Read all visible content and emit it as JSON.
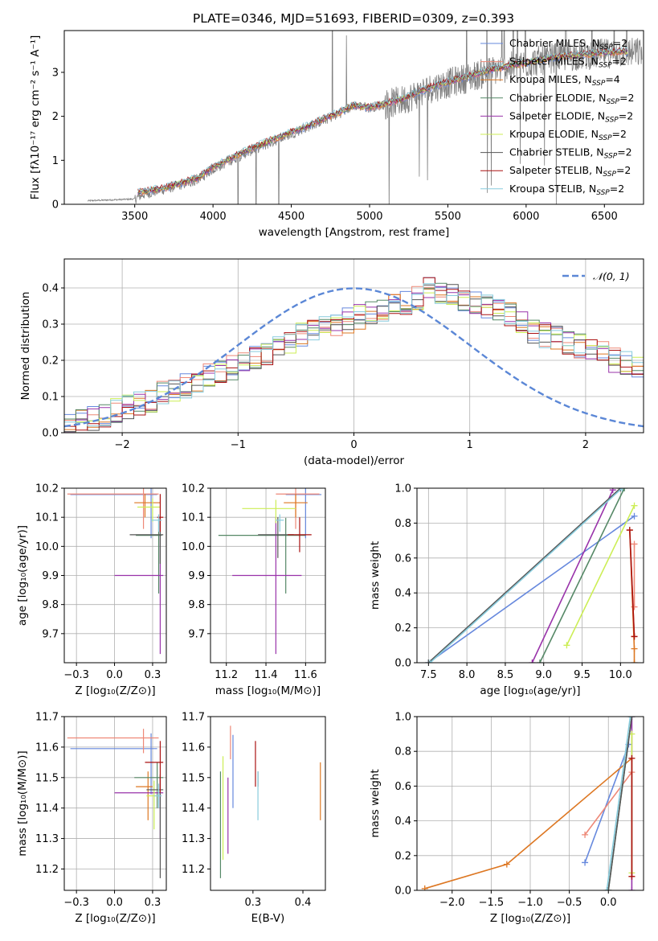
{
  "figure": {
    "title": "PLATE=0346, MJD=51693, FIBERID=0309, z=0.393"
  },
  "models": [
    {
      "name": "Chabrier MILES",
      "nssp": "2",
      "color": "#6688dd"
    },
    {
      "name": "Salpeter MILES",
      "nssp": "2",
      "color": "#ee8877"
    },
    {
      "name": "Kroupa MILES",
      "nssp": "4",
      "color": "#dd7722"
    },
    {
      "name": "Chabrier ELODIE",
      "nssp": "2",
      "color": "#558866"
    },
    {
      "name": "Salpeter ELODIE",
      "nssp": "2",
      "color": "#9933aa"
    },
    {
      "name": "Kroupa ELODIE",
      "nssp": "2",
      "color": "#ccee55"
    },
    {
      "name": "Chabrier STELIB",
      "nssp": "2",
      "color": "#555555"
    },
    {
      "name": "Salpeter STELIB",
      "nssp": "2",
      "color": "#aa1111"
    },
    {
      "name": "Kroupa STELIB",
      "nssp": "2",
      "color": "#88ccdd"
    }
  ],
  "legend_nssp_prefix": "N",
  "legend_nssp_sub": "SSP",
  "chart_data": [
    {
      "id": "spectrum",
      "type": "line",
      "xlabel": "wavelength [Angstrom, rest frame]",
      "ylabel": "Flux [fλ10⁻¹⁷ erg cm⁻² s⁻¹ A⁻¹]",
      "xlim": [
        3050,
        6750
      ],
      "ylim": [
        0,
        3.95
      ],
      "xticks": [
        3500,
        4000,
        4500,
        5000,
        5500,
        6000,
        6500
      ],
      "yticks": [
        0,
        1,
        2,
        3
      ],
      "grid": false,
      "legend_position": "top-right",
      "data_color": "#808080",
      "data_trend": {
        "x": [
          3200,
          3500,
          3550,
          3700,
          3900,
          4000,
          4200,
          4400,
          4600,
          4800,
          4900,
          5000,
          5200,
          5400,
          5600,
          5800,
          6000,
          6200,
          6400,
          6600
        ],
        "y": [
          0.08,
          0.12,
          0.22,
          0.35,
          0.55,
          0.8,
          1.15,
          1.45,
          1.75,
          2.05,
          2.25,
          2.2,
          2.35,
          2.65,
          2.85,
          3.05,
          3.2,
          3.35,
          3.4,
          3.45
        ]
      },
      "model_trend": {
        "x": [
          3500,
          3700,
          3900,
          4000,
          4200,
          4400,
          4600,
          4800,
          4900,
          5000,
          5200,
          5400,
          5600,
          5800,
          6000,
          6200,
          6400,
          6600
        ],
        "y": [
          0.25,
          0.38,
          0.6,
          0.85,
          1.2,
          1.5,
          1.78,
          2.08,
          2.25,
          2.2,
          2.38,
          2.68,
          2.88,
          3.08,
          3.22,
          3.36,
          3.42,
          3.47
        ]
      }
    },
    {
      "id": "residuals",
      "type": "bar",
      "xlabel": "(data-model)/error",
      "ylabel": "Normed distribution",
      "xlim": [
        -2.5,
        2.5
      ],
      "ylim": [
        0,
        0.48
      ],
      "xticks": [
        -2,
        -1,
        0,
        1,
        2
      ],
      "yticks": [
        0.0,
        0.1,
        0.2,
        0.3,
        0.4
      ],
      "grid": true,
      "bin_edges_start": -2.5,
      "bin_width": 0.1,
      "base_hist": [
        0.02,
        0.03,
        0.04,
        0.05,
        0.06,
        0.07,
        0.08,
        0.09,
        0.11,
        0.12,
        0.13,
        0.14,
        0.16,
        0.17,
        0.18,
        0.2,
        0.21,
        0.22,
        0.24,
        0.25,
        0.27,
        0.28,
        0.29,
        0.3,
        0.31,
        0.32,
        0.33,
        0.34,
        0.35,
        0.36,
        0.37,
        0.4,
        0.39,
        0.38,
        0.37,
        0.36,
        0.35,
        0.34,
        0.33,
        0.3,
        0.28,
        0.27,
        0.26,
        0.25,
        0.24,
        0.23,
        0.22,
        0.2,
        0.19,
        0.18,
        0.17,
        0.16,
        0.15,
        0.14,
        0.14,
        0.13,
        0.12,
        0.11,
        0.11,
        0.1,
        0.09,
        0.09,
        0.08,
        0.08,
        0.07,
        0.07,
        0.07,
        0.06,
        0.06,
        0.05
      ],
      "normal_label": "𝒩(0, 1)",
      "normal_color": "#5b87d6",
      "legend_position": "top-right"
    },
    {
      "id": "age_vs_Z",
      "type": "scatter",
      "xlabel": "Z [log₁₀(Z/Z⊙)]",
      "ylabel": "age  [log₁₀(age/yr)]",
      "xlim": [
        -0.33,
        0.34
      ],
      "ylim": [
        9.6,
        10.2
      ],
      "xticks": [
        -0.25,
        0.0,
        0.25
      ],
      "yticks": [
        9.7,
        9.8,
        9.9,
        10.0,
        10.1,
        10.2
      ],
      "grid": true,
      "points": [
        {
          "model": 0,
          "x": 0.24,
          "y": 10.178,
          "xerr": [
            0.53,
            0.04
          ],
          "yerr": [
            0.15,
            0.05
          ]
        },
        {
          "model": 1,
          "x": 0.19,
          "y": 10.18,
          "xerr": [
            0.5,
            0.1
          ],
          "yerr": [
            0.12,
            0.05
          ]
        },
        {
          "model": 2,
          "x": 0.2,
          "y": 10.15,
          "xerr": [
            0.07,
            0.1
          ],
          "yerr": [
            0.05,
            0.03
          ]
        },
        {
          "model": 3,
          "x": 0.29,
          "y": 10.038,
          "xerr": [
            0.15,
            0.02
          ],
          "yerr": [
            0.2,
            0.06
          ]
        },
        {
          "model": 4,
          "x": 0.3,
          "y": 9.9,
          "xerr": [
            0.3,
            0.02
          ],
          "yerr": [
            0.27,
            0.2
          ]
        },
        {
          "model": 5,
          "x": 0.25,
          "y": 10.135,
          "xerr": [
            0.1,
            0.05
          ],
          "yerr": [
            0.05,
            0.03
          ]
        },
        {
          "model": 6,
          "x": 0.3,
          "y": 10.04,
          "xerr": [
            0.2,
            0.02
          ],
          "yerr": [
            0.1,
            0.06
          ]
        },
        {
          "model": 7,
          "x": 0.3,
          "y": 10.1,
          "xerr": [
            0.02,
            0.02
          ],
          "yerr": [
            0.05,
            0.08
          ]
        },
        {
          "model": 8,
          "x": 0.29,
          "y": 10.09,
          "xerr": [
            0.05,
            0.02
          ],
          "yerr": [
            0.04,
            0.02
          ]
        }
      ]
    },
    {
      "id": "age_vs_mass",
      "type": "scatter",
      "xlabel": "mass [log₁₀(M/M⊙)]",
      "ylabel": "",
      "xlim": [
        11.12,
        11.7
      ],
      "ylim": [
        9.6,
        10.2
      ],
      "xticks": [
        11.2,
        11.4,
        11.6
      ],
      "yticks": [
        9.7,
        9.8,
        9.9,
        10.0,
        10.1,
        10.2
      ],
      "grid": true,
      "points": [
        {
          "model": 0,
          "x": 11.6,
          "y": 10.178,
          "xerr": [
            0.1,
            0.08
          ],
          "yerr": [
            0.15,
            0.05
          ]
        },
        {
          "model": 1,
          "x": 11.55,
          "y": 10.18,
          "xerr": [
            0.1,
            0.12
          ],
          "yerr": [
            0.12,
            0.05
          ]
        },
        {
          "model": 2,
          "x": 11.55,
          "y": 10.15,
          "xerr": [
            0.06,
            0.06
          ],
          "yerr": [
            0.05,
            0.03
          ]
        },
        {
          "model": 3,
          "x": 11.5,
          "y": 10.038,
          "xerr": [
            0.34,
            0.1
          ],
          "yerr": [
            0.2,
            0.06
          ]
        },
        {
          "model": 4,
          "x": 11.45,
          "y": 9.9,
          "xerr": [
            0.22,
            0.13
          ],
          "yerr": [
            0.27,
            0.2
          ]
        },
        {
          "model": 5,
          "x": 11.45,
          "y": 10.13,
          "xerr": [
            0.17,
            0.1
          ],
          "yerr": [
            0.05,
            0.03
          ]
        },
        {
          "model": 6,
          "x": 11.46,
          "y": 10.04,
          "xerr": [
            0.1,
            0.08
          ],
          "yerr": [
            0.08,
            0.06
          ]
        },
        {
          "model": 7,
          "x": 11.57,
          "y": 10.04,
          "xerr": [
            0.06,
            0.06
          ],
          "yerr": [
            0.06,
            0.06
          ]
        },
        {
          "model": 8,
          "x": 11.47,
          "y": 10.09,
          "xerr": [
            0.02,
            0.02
          ],
          "yerr": [
            0.04,
            0.02
          ]
        }
      ]
    },
    {
      "id": "mass_weight_vs_age",
      "type": "line",
      "xlabel": "age  [log₁₀(age/yr)]",
      "ylabel": "mass weight",
      "xlim": [
        7.35,
        10.3
      ],
      "ylim": [
        0,
        1
      ],
      "xticks": [
        7.5,
        8.0,
        8.5,
        9.0,
        9.5,
        10.0
      ],
      "yticks": [
        0.0,
        0.2,
        0.4,
        0.6,
        0.8,
        1.0
      ],
      "grid": true,
      "series": [
        {
          "model": 0,
          "x": [
            7.5,
            10.18
          ],
          "y": [
            0.0,
            0.84
          ]
        },
        {
          "model": 1,
          "x": [
            10.18,
            10.18
          ],
          "y": [
            0.32,
            0.68
          ]
        },
        {
          "model": 2,
          "x": [
            10.18,
            10.18,
            10.12,
            10.18
          ],
          "y": [
            0.0,
            0.08,
            0.76,
            0.15
          ]
        },
        {
          "model": 3,
          "x": [
            8.95,
            10.05
          ],
          "y": [
            0.0,
            1.0
          ]
        },
        {
          "model": 4,
          "x": [
            8.85,
            9.9
          ],
          "y": [
            0.0,
            0.99
          ]
        },
        {
          "model": 5,
          "x": [
            9.3,
            10.18
          ],
          "y": [
            0.1,
            0.9
          ]
        },
        {
          "model": 6,
          "x": [
            7.5,
            10.0
          ],
          "y": [
            0.0,
            1.0
          ]
        },
        {
          "model": 7,
          "x": [
            10.12,
            10.18
          ],
          "y": [
            0.76,
            0.15
          ]
        },
        {
          "model": 8,
          "x": [
            7.52,
            10.02
          ],
          "y": [
            0.0,
            1.0
          ]
        }
      ]
    },
    {
      "id": "mass_vs_Z",
      "type": "scatter",
      "xlabel": "Z [log₁₀(Z/Z⊙)]",
      "ylabel": "mass [log₁₀(M/M⊙)]",
      "xlim": [
        -0.33,
        0.34
      ],
      "ylim": [
        11.13,
        11.7
      ],
      "xticks": [
        -0.25,
        0.0,
        0.25
      ],
      "yticks": [
        11.2,
        11.3,
        11.4,
        11.5,
        11.6,
        11.7
      ],
      "grid": true,
      "points": [
        {
          "model": 0,
          "x": 0.24,
          "y": 11.595,
          "xerr": [
            0.53,
            0.04
          ],
          "yerr": [
            0.15,
            0.05
          ]
        },
        {
          "model": 1,
          "x": 0.19,
          "y": 11.63,
          "xerr": [
            0.5,
            0.1
          ],
          "yerr": [
            0.05,
            0.03
          ]
        },
        {
          "model": 2,
          "x": 0.22,
          "y": 11.47,
          "xerr": [
            0.08,
            0.03
          ],
          "yerr": [
            0.11,
            0.05
          ]
        },
        {
          "model": 3,
          "x": 0.28,
          "y": 11.5,
          "xerr": [
            0.15,
            0.04
          ],
          "yerr": [
            0.1,
            0.05
          ]
        },
        {
          "model": 4,
          "x": 0.3,
          "y": 11.45,
          "xerr": [
            0.3,
            0.02
          ],
          "yerr": [
            0.15,
            0.05
          ]
        },
        {
          "model": 5,
          "x": 0.26,
          "y": 11.44,
          "xerr": [
            0.05,
            0.03
          ],
          "yerr": [
            0.11,
            0.05
          ]
        },
        {
          "model": 6,
          "x": 0.3,
          "y": 11.46,
          "xerr": [
            0.09,
            0.02
          ],
          "yerr": [
            0.29,
            0.05
          ]
        },
        {
          "model": 7,
          "x": 0.3,
          "y": 11.55,
          "xerr": [
            0.1,
            0.02
          ],
          "yerr": [
            0.1,
            0.07
          ]
        },
        {
          "model": 8,
          "x": 0.29,
          "y": 11.44,
          "xerr": [
            0.03,
            0.02
          ],
          "yerr": [
            0.04,
            0.04
          ]
        }
      ]
    },
    {
      "id": "mass_vs_EBV",
      "type": "scatter",
      "xlabel": "E(B-V)",
      "ylabel": "",
      "xlim": [
        0.215,
        0.445
      ],
      "ylim": [
        11.13,
        11.7
      ],
      "xticks": [
        0.3,
        0.4
      ],
      "yticks": [
        11.2,
        11.3,
        11.4,
        11.5,
        11.6,
        11.7
      ],
      "grid": false,
      "points": [
        {
          "model": 0,
          "x": 0.26,
          "y": 11.56,
          "xerr": [
            0,
            0
          ],
          "yerr": [
            0.16,
            0.08
          ]
        },
        {
          "model": 1,
          "x": 0.255,
          "y": 11.62,
          "xerr": [
            0,
            0
          ],
          "yerr": [
            0.06,
            0.05
          ]
        },
        {
          "model": 2,
          "x": 0.435,
          "y": 11.47,
          "xerr": [
            0,
            0
          ],
          "yerr": [
            0.11,
            0.08
          ]
        },
        {
          "model": 3,
          "x": 0.235,
          "y": 11.39,
          "xerr": [
            0,
            0
          ],
          "yerr": [
            0.22,
            0.13
          ]
        },
        {
          "model": 4,
          "x": 0.25,
          "y": 11.38,
          "xerr": [
            0,
            0
          ],
          "yerr": [
            0.13,
            0.12
          ]
        },
        {
          "model": 5,
          "x": 0.24,
          "y": 11.45,
          "xerr": [
            0,
            0
          ],
          "yerr": [
            0.22,
            0.12
          ]
        },
        {
          "model": 6,
          "x": 0.31,
          "y": 11.5,
          "xerr": [
            0,
            0
          ],
          "yerr": [
            0.03,
            0.02
          ]
        },
        {
          "model": 7,
          "x": 0.305,
          "y": 11.54,
          "xerr": [
            0,
            0
          ],
          "yerr": [
            0.07,
            0.08
          ]
        },
        {
          "model": 8,
          "x": 0.31,
          "y": 11.42,
          "xerr": [
            0,
            0
          ],
          "yerr": [
            0.06,
            0.1
          ]
        }
      ]
    },
    {
      "id": "mass_weight_vs_Z",
      "type": "line",
      "xlabel": "Z [log₁₀(Z/Z⊙)]",
      "ylabel": "mass weight",
      "xlim": [
        -2.45,
        0.45
      ],
      "ylim": [
        0,
        1
      ],
      "xticks": [
        -2.0,
        -1.5,
        -1.0,
        -0.5,
        0.0
      ],
      "yticks": [
        0.0,
        0.2,
        0.4,
        0.6,
        0.8,
        1.0
      ],
      "grid": true,
      "series": [
        {
          "model": 0,
          "x": [
            -0.3,
            0.26
          ],
          "y": [
            0.16,
            0.84
          ]
        },
        {
          "model": 1,
          "x": [
            -0.3,
            0.3
          ],
          "y": [
            0.32,
            0.68
          ]
        },
        {
          "model": 2,
          "x": [
            -2.35,
            -1.3,
            0.3,
            0.3
          ],
          "y": [
            0.01,
            0.15,
            0.76,
            0.08
          ]
        },
        {
          "model": 3,
          "x": [
            0.0,
            0.3
          ],
          "y": [
            0.0,
            1.0
          ]
        },
        {
          "model": 4,
          "x": [
            0.3,
            0.3
          ],
          "y": [
            0.0,
            1.0
          ]
        },
        {
          "model": 5,
          "x": [
            0.3,
            0.3
          ],
          "y": [
            0.1,
            0.9
          ]
        },
        {
          "model": 6,
          "x": [
            0.0,
            0.3
          ],
          "y": [
            0.0,
            1.0
          ]
        },
        {
          "model": 7,
          "x": [
            0.3,
            0.3
          ],
          "y": [
            0.08,
            0.76
          ]
        },
        {
          "model": 8,
          "x": [
            -0.02,
            0.28
          ],
          "y": [
            0.0,
            1.0
          ]
        }
      ]
    }
  ]
}
